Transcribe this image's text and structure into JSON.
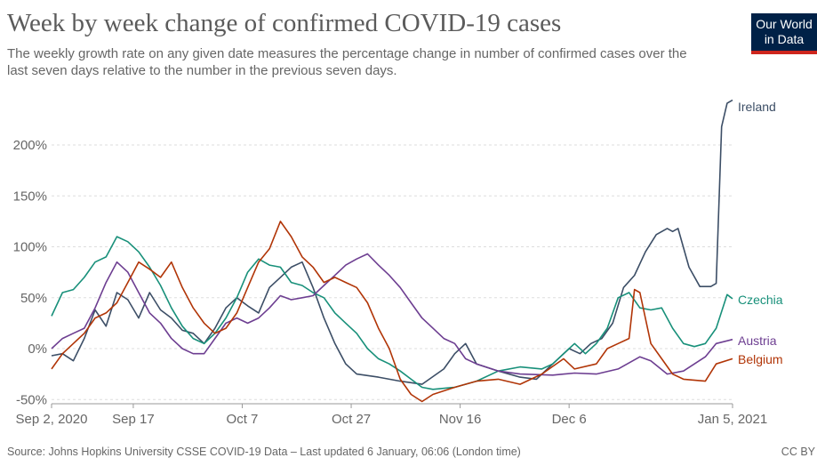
{
  "header": {
    "title": "Week by week change of confirmed COVID-19 cases",
    "subtitle": "The weekly growth rate on any given date measures the percentage change in number of confirmed cases over the last seven days relative to the number in the previous seven days.",
    "logo_line1": "Our World",
    "logo_line2": "in Data"
  },
  "footer": {
    "source": "Source: Johns Hopkins University CSSE COVID-19 Data – Last updated 6 January, 06:06 (London time)",
    "license": "CC BY"
  },
  "colors": {
    "Ireland": "#3c4e66",
    "Czechia": "#18907a",
    "Austria": "#6d3e91",
    "Belgium": "#b13507",
    "grid": "#dddddd",
    "axis": "#666666"
  },
  "chart_data": {
    "type": "line",
    "title": "Week by week change of confirmed COVID-19 cases",
    "ylim": [
      -50,
      260
    ],
    "y_ticks": [
      -50,
      0,
      50,
      100,
      150,
      200
    ],
    "y_tick_labels": [
      "-50%",
      "0%",
      "50%",
      "100%",
      "150%",
      "200%"
    ],
    "x_range": [
      "2020-09-02",
      "2021-01-05"
    ],
    "x_ticks": [
      "2020-09-02",
      "2020-09-17",
      "2020-10-07",
      "2020-10-27",
      "2020-11-16",
      "2020-12-06",
      "2021-01-05"
    ],
    "x_tick_labels": [
      "Sep 2, 2020",
      "Sep 17",
      "Oct 7",
      "Oct 27",
      "Nov 16",
      "Dec 6",
      "Jan 5, 2021"
    ],
    "grid": "horizontal",
    "legend": "line-end labels",
    "series": [
      {
        "name": "Ireland",
        "points": [
          [
            "2020-09-02",
            -7
          ],
          [
            "2020-09-04",
            -5
          ],
          [
            "2020-09-06",
            -12
          ],
          [
            "2020-09-08",
            10
          ],
          [
            "2020-09-10",
            38
          ],
          [
            "2020-09-12",
            22
          ],
          [
            "2020-09-14",
            55
          ],
          [
            "2020-09-16",
            48
          ],
          [
            "2020-09-18",
            30
          ],
          [
            "2020-09-20",
            55
          ],
          [
            "2020-09-22",
            38
          ],
          [
            "2020-09-24",
            30
          ],
          [
            "2020-09-26",
            18
          ],
          [
            "2020-09-28",
            15
          ],
          [
            "2020-09-30",
            5
          ],
          [
            "2020-10-02",
            20
          ],
          [
            "2020-10-04",
            40
          ],
          [
            "2020-10-06",
            50
          ],
          [
            "2020-10-08",
            42
          ],
          [
            "2020-10-10",
            35
          ],
          [
            "2020-10-12",
            60
          ],
          [
            "2020-10-14",
            70
          ],
          [
            "2020-10-16",
            80
          ],
          [
            "2020-10-18",
            85
          ],
          [
            "2020-10-20",
            60
          ],
          [
            "2020-10-22",
            30
          ],
          [
            "2020-10-24",
            5
          ],
          [
            "2020-10-26",
            -15
          ],
          [
            "2020-10-28",
            -25
          ],
          [
            "2020-11-01",
            -28
          ],
          [
            "2020-11-05",
            -32
          ],
          [
            "2020-11-09",
            -35
          ],
          [
            "2020-11-13",
            -20
          ],
          [
            "2020-11-15",
            -5
          ],
          [
            "2020-11-17",
            5
          ],
          [
            "2020-11-19",
            -15
          ],
          [
            "2020-11-23",
            -22
          ],
          [
            "2020-11-27",
            -28
          ],
          [
            "2020-11-30",
            -30
          ],
          [
            "2020-12-02",
            -20
          ],
          [
            "2020-12-04",
            -10
          ],
          [
            "2020-12-06",
            0
          ],
          [
            "2020-12-08",
            -5
          ],
          [
            "2020-12-10",
            5
          ],
          [
            "2020-12-12",
            10
          ],
          [
            "2020-12-14",
            25
          ],
          [
            "2020-12-16",
            60
          ],
          [
            "2020-12-18",
            72
          ],
          [
            "2020-12-20",
            95
          ],
          [
            "2020-12-22",
            112
          ],
          [
            "2020-12-24",
            118
          ],
          [
            "2020-12-25",
            115
          ],
          [
            "2020-12-26",
            118
          ],
          [
            "2020-12-28",
            80
          ],
          [
            "2020-12-30",
            61
          ],
          [
            "2021-01-01",
            61
          ],
          [
            "2021-01-02",
            64
          ],
          [
            "2021-01-03",
            218
          ],
          [
            "2021-01-04",
            241
          ],
          [
            "2021-01-05",
            244
          ]
        ]
      },
      {
        "name": "Czechia",
        "points": [
          [
            "2020-09-02",
            32
          ],
          [
            "2020-09-04",
            55
          ],
          [
            "2020-09-06",
            58
          ],
          [
            "2020-09-08",
            70
          ],
          [
            "2020-09-10",
            85
          ],
          [
            "2020-09-12",
            90
          ],
          [
            "2020-09-14",
            110
          ],
          [
            "2020-09-16",
            105
          ],
          [
            "2020-09-18",
            95
          ],
          [
            "2020-09-20",
            80
          ],
          [
            "2020-09-22",
            62
          ],
          [
            "2020-09-24",
            40
          ],
          [
            "2020-09-26",
            22
          ],
          [
            "2020-09-28",
            10
          ],
          [
            "2020-09-30",
            5
          ],
          [
            "2020-10-02",
            15
          ],
          [
            "2020-10-04",
            30
          ],
          [
            "2020-10-06",
            50
          ],
          [
            "2020-10-08",
            75
          ],
          [
            "2020-10-10",
            88
          ],
          [
            "2020-10-12",
            82
          ],
          [
            "2020-10-14",
            80
          ],
          [
            "2020-10-16",
            65
          ],
          [
            "2020-10-18",
            62
          ],
          [
            "2020-10-20",
            55
          ],
          [
            "2020-10-22",
            50
          ],
          [
            "2020-10-24",
            35
          ],
          [
            "2020-10-26",
            25
          ],
          [
            "2020-10-28",
            15
          ],
          [
            "2020-10-30",
            0
          ],
          [
            "2020-11-01",
            -10
          ],
          [
            "2020-11-03",
            -15
          ],
          [
            "2020-11-05",
            -22
          ],
          [
            "2020-11-07",
            -30
          ],
          [
            "2020-11-09",
            -38
          ],
          [
            "2020-11-11",
            -40
          ],
          [
            "2020-11-15",
            -38
          ],
          [
            "2020-11-19",
            -32
          ],
          [
            "2020-11-23",
            -22
          ],
          [
            "2020-11-27",
            -18
          ],
          [
            "2020-12-01",
            -20
          ],
          [
            "2020-12-03",
            -15
          ],
          [
            "2020-12-05",
            -5
          ],
          [
            "2020-12-07",
            5
          ],
          [
            "2020-12-09",
            -5
          ],
          [
            "2020-12-11",
            5
          ],
          [
            "2020-12-13",
            20
          ],
          [
            "2020-12-15",
            50
          ],
          [
            "2020-12-17",
            55
          ],
          [
            "2020-12-19",
            40
          ],
          [
            "2020-12-21",
            38
          ],
          [
            "2020-12-23",
            40
          ],
          [
            "2020-12-25",
            20
          ],
          [
            "2020-12-27",
            5
          ],
          [
            "2020-12-29",
            2
          ],
          [
            "2020-12-31",
            5
          ],
          [
            "2021-01-02",
            20
          ],
          [
            "2021-01-04",
            53
          ],
          [
            "2021-01-05",
            49
          ]
        ]
      },
      {
        "name": "Austria",
        "points": [
          [
            "2020-09-02",
            0
          ],
          [
            "2020-09-04",
            10
          ],
          [
            "2020-09-06",
            15
          ],
          [
            "2020-09-08",
            20
          ],
          [
            "2020-09-10",
            40
          ],
          [
            "2020-09-12",
            65
          ],
          [
            "2020-09-14",
            85
          ],
          [
            "2020-09-16",
            75
          ],
          [
            "2020-09-18",
            55
          ],
          [
            "2020-09-20",
            35
          ],
          [
            "2020-09-22",
            25
          ],
          [
            "2020-09-24",
            10
          ],
          [
            "2020-09-26",
            0
          ],
          [
            "2020-09-28",
            -5
          ],
          [
            "2020-09-30",
            -5
          ],
          [
            "2020-10-02",
            10
          ],
          [
            "2020-10-04",
            25
          ],
          [
            "2020-10-06",
            30
          ],
          [
            "2020-10-08",
            25
          ],
          [
            "2020-10-10",
            30
          ],
          [
            "2020-10-12",
            40
          ],
          [
            "2020-10-14",
            52
          ],
          [
            "2020-10-16",
            48
          ],
          [
            "2020-10-18",
            50
          ],
          [
            "2020-10-20",
            52
          ],
          [
            "2020-10-22",
            62
          ],
          [
            "2020-10-24",
            72
          ],
          [
            "2020-10-26",
            82
          ],
          [
            "2020-10-28",
            88
          ],
          [
            "2020-10-30",
            93
          ],
          [
            "2020-11-01",
            82
          ],
          [
            "2020-11-03",
            72
          ],
          [
            "2020-11-05",
            60
          ],
          [
            "2020-11-07",
            45
          ],
          [
            "2020-11-09",
            30
          ],
          [
            "2020-11-11",
            20
          ],
          [
            "2020-11-13",
            10
          ],
          [
            "2020-11-15",
            5
          ],
          [
            "2020-11-17",
            -10
          ],
          [
            "2020-11-19",
            -15
          ],
          [
            "2020-11-23",
            -22
          ],
          [
            "2020-11-27",
            -25
          ],
          [
            "2020-12-03",
            -26
          ],
          [
            "2020-12-07",
            -24
          ],
          [
            "2020-12-11",
            -25
          ],
          [
            "2020-12-15",
            -20
          ],
          [
            "2020-12-19",
            -8
          ],
          [
            "2020-12-21",
            -12
          ],
          [
            "2020-12-24",
            -25
          ],
          [
            "2020-12-27",
            -22
          ],
          [
            "2020-12-31",
            -8
          ],
          [
            "2021-01-02",
            5
          ],
          [
            "2021-01-05",
            9
          ]
        ]
      },
      {
        "name": "Belgium",
        "points": [
          [
            "2020-09-02",
            -20
          ],
          [
            "2020-09-04",
            -5
          ],
          [
            "2020-09-06",
            5
          ],
          [
            "2020-09-08",
            15
          ],
          [
            "2020-09-10",
            30
          ],
          [
            "2020-09-12",
            35
          ],
          [
            "2020-09-14",
            45
          ],
          [
            "2020-09-16",
            65
          ],
          [
            "2020-09-18",
            85
          ],
          [
            "2020-09-20",
            78
          ],
          [
            "2020-09-22",
            70
          ],
          [
            "2020-09-24",
            85
          ],
          [
            "2020-09-26",
            60
          ],
          [
            "2020-09-28",
            40
          ],
          [
            "2020-09-30",
            25
          ],
          [
            "2020-10-02",
            15
          ],
          [
            "2020-10-04",
            20
          ],
          [
            "2020-10-06",
            35
          ],
          [
            "2020-10-08",
            60
          ],
          [
            "2020-10-10",
            85
          ],
          [
            "2020-10-12",
            98
          ],
          [
            "2020-10-14",
            125
          ],
          [
            "2020-10-16",
            110
          ],
          [
            "2020-10-18",
            90
          ],
          [
            "2020-10-20",
            80
          ],
          [
            "2020-10-22",
            65
          ],
          [
            "2020-10-24",
            70
          ],
          [
            "2020-10-26",
            65
          ],
          [
            "2020-10-28",
            60
          ],
          [
            "2020-10-30",
            45
          ],
          [
            "2020-11-01",
            20
          ],
          [
            "2020-11-03",
            0
          ],
          [
            "2020-11-05",
            -30
          ],
          [
            "2020-11-07",
            -45
          ],
          [
            "2020-11-09",
            -52
          ],
          [
            "2020-11-11",
            -45
          ],
          [
            "2020-11-15",
            -38
          ],
          [
            "2020-11-19",
            -32
          ],
          [
            "2020-11-23",
            -30
          ],
          [
            "2020-11-27",
            -35
          ],
          [
            "2020-12-01",
            -25
          ],
          [
            "2020-12-05",
            -10
          ],
          [
            "2020-12-07",
            -20
          ],
          [
            "2020-12-11",
            -15
          ],
          [
            "2020-12-13",
            0
          ],
          [
            "2020-12-15",
            5
          ],
          [
            "2020-12-17",
            10
          ],
          [
            "2020-12-18",
            58
          ],
          [
            "2020-12-19",
            55
          ],
          [
            "2020-12-21",
            5
          ],
          [
            "2020-12-23",
            -10
          ],
          [
            "2020-12-25",
            -25
          ],
          [
            "2020-12-27",
            -30
          ],
          [
            "2020-12-31",
            -32
          ],
          [
            "2021-01-02",
            -15
          ],
          [
            "2021-01-05",
            -10
          ]
        ]
      }
    ]
  }
}
